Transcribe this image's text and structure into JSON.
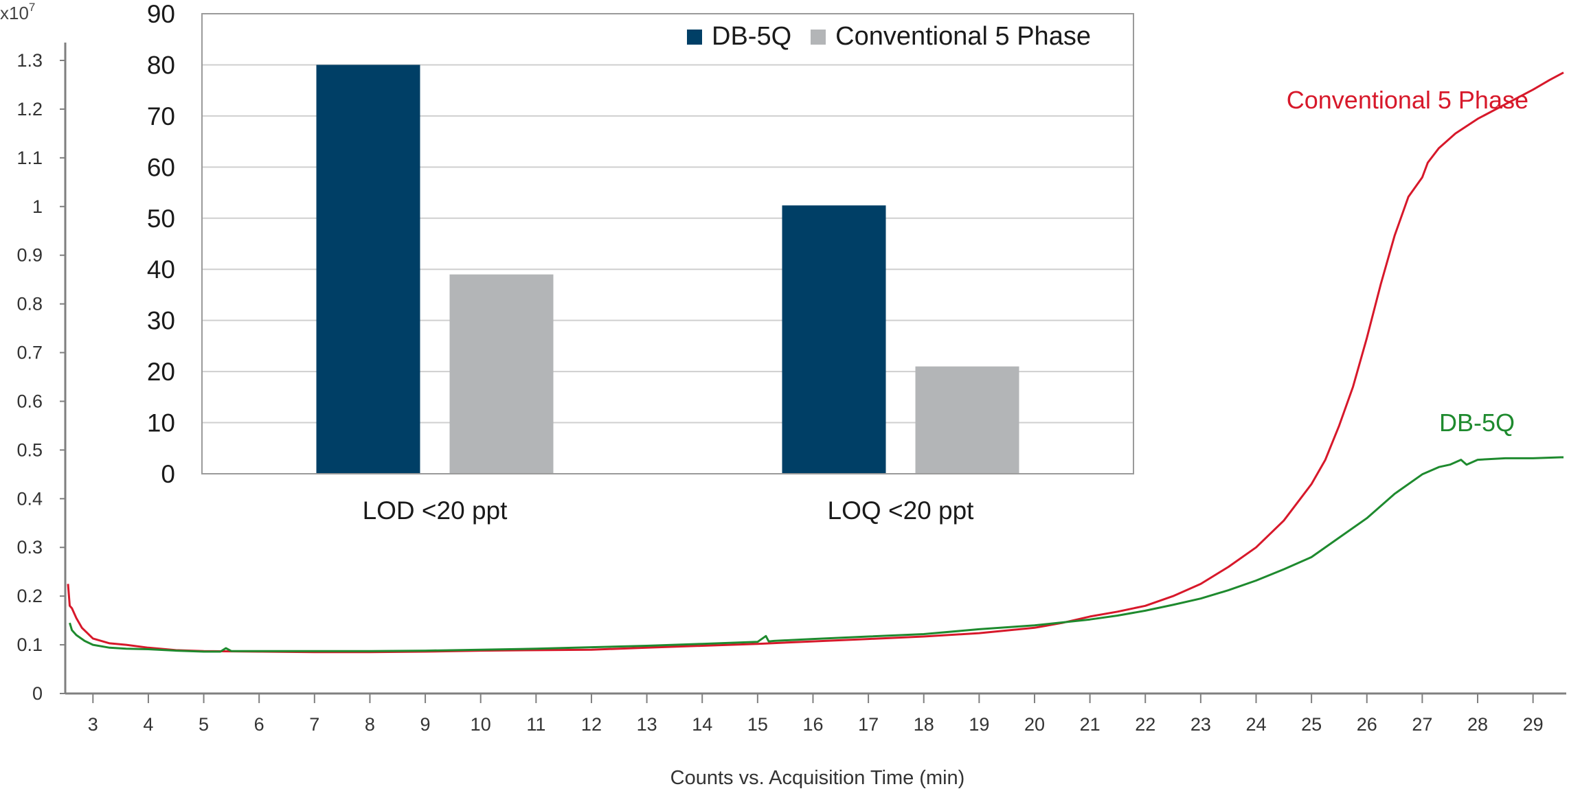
{
  "chart_data": [
    {
      "type": "line",
      "xlabel": "Counts vs. Acquisition Time (min)",
      "ylabel": "",
      "y_multiplier_label": "x10",
      "y_multiplier_exponent": "7",
      "xlim": [
        2.5,
        29.6
      ],
      "ylim": [
        0,
        1.3
      ],
      "x_ticks": [
        "3",
        "4",
        "5",
        "6",
        "7",
        "8",
        "9",
        "10",
        "11",
        "12",
        "13",
        "14",
        "15",
        "16",
        "17",
        "18",
        "19",
        "20",
        "21",
        "22",
        "23",
        "24",
        "25",
        "26",
        "27",
        "28",
        "29"
      ],
      "y_ticks": [
        "0",
        "0.1",
        "0.2",
        "0.3",
        "0.4",
        "0.5",
        "0.6",
        "0.7",
        "0.8",
        "0.9",
        "1",
        "1.1",
        "1.2",
        "1.3"
      ],
      "grid": false,
      "series": [
        {
          "name": "Conventional 5 Phase",
          "color": "#d7182a",
          "x": [
            2.55,
            2.58,
            2.62,
            2.7,
            2.8,
            3.0,
            3.3,
            3.6,
            4.0,
            4.5,
            5,
            6,
            7,
            8,
            9,
            10,
            11,
            12,
            13,
            14,
            15,
            16,
            17,
            18,
            19,
            20,
            20.5,
            21,
            21.5,
            22,
            22.5,
            23,
            23.5,
            24,
            24.5,
            25,
            25.25,
            25.5,
            25.75,
            26,
            26.25,
            26.5,
            26.75,
            27.0,
            27.1,
            27.3,
            27.6,
            28,
            28.5,
            29,
            29.3,
            29.55
          ],
          "values": [
            0.225,
            0.18,
            0.175,
            0.155,
            0.135,
            0.113,
            0.103,
            0.1,
            0.094,
            0.089,
            0.087,
            0.086,
            0.085,
            0.085,
            0.086,
            0.088,
            0.089,
            0.09,
            0.094,
            0.098,
            0.102,
            0.107,
            0.112,
            0.117,
            0.124,
            0.135,
            0.145,
            0.158,
            0.168,
            0.18,
            0.2,
            0.225,
            0.26,
            0.3,
            0.355,
            0.43,
            0.48,
            0.55,
            0.63,
            0.73,
            0.84,
            0.94,
            1.02,
            1.06,
            1.09,
            1.12,
            1.15,
            1.18,
            1.21,
            1.24,
            1.26,
            1.275
          ]
        },
        {
          "name": "DB-5Q",
          "color": "#1e8a2e",
          "x": [
            2.58,
            2.62,
            2.7,
            2.85,
            3.0,
            3.3,
            3.6,
            4.0,
            4.5,
            5,
            5.3,
            5.4,
            5.5,
            6,
            7,
            8,
            9,
            10,
            11,
            11.7,
            12,
            13,
            14,
            14.5,
            15,
            15.15,
            15.2,
            15.3,
            16,
            17,
            18,
            19,
            20,
            20.5,
            21,
            21.5,
            22,
            22.5,
            23,
            23.5,
            24,
            24.5,
            25,
            25.5,
            26,
            26.5,
            27,
            27.3,
            27.5,
            27.7,
            27.8,
            28,
            28.5,
            29,
            29.5,
            29.55
          ],
          "values": [
            0.145,
            0.13,
            0.12,
            0.108,
            0.1,
            0.094,
            0.092,
            0.091,
            0.088,
            0.086,
            0.086,
            0.093,
            0.087,
            0.087,
            0.087,
            0.087,
            0.088,
            0.09,
            0.092,
            0.094,
            0.095,
            0.098,
            0.102,
            0.104,
            0.106,
            0.118,
            0.107,
            0.108,
            0.112,
            0.117,
            0.122,
            0.132,
            0.14,
            0.146,
            0.152,
            0.16,
            0.17,
            0.182,
            0.195,
            0.212,
            0.232,
            0.255,
            0.28,
            0.32,
            0.36,
            0.41,
            0.45,
            0.465,
            0.47,
            0.48,
            0.47,
            0.48,
            0.483,
            0.483,
            0.485,
            0.485
          ]
        }
      ],
      "annotations": [
        {
          "text": "Conventional 5 Phase",
          "color": "#d7182a"
        },
        {
          "text": "DB-5Q",
          "color": "#1e8a2e"
        }
      ]
    },
    {
      "type": "bar",
      "categories": [
        "LOD <20 ppt",
        "LOQ <20 ppt"
      ],
      "ylim": [
        0,
        90
      ],
      "y_ticks": [
        "0",
        "10",
        "20",
        "30",
        "40",
        "50",
        "60",
        "70",
        "80",
        "90"
      ],
      "grid": true,
      "legend_placement": "top-right",
      "series": [
        {
          "name": "DB-5Q",
          "color": "#003f66",
          "values": [
            80,
            52.5
          ]
        },
        {
          "name": "Conventional 5 Phase",
          "color": "#b3b5b7",
          "values": [
            39,
            21
          ]
        }
      ]
    }
  ]
}
